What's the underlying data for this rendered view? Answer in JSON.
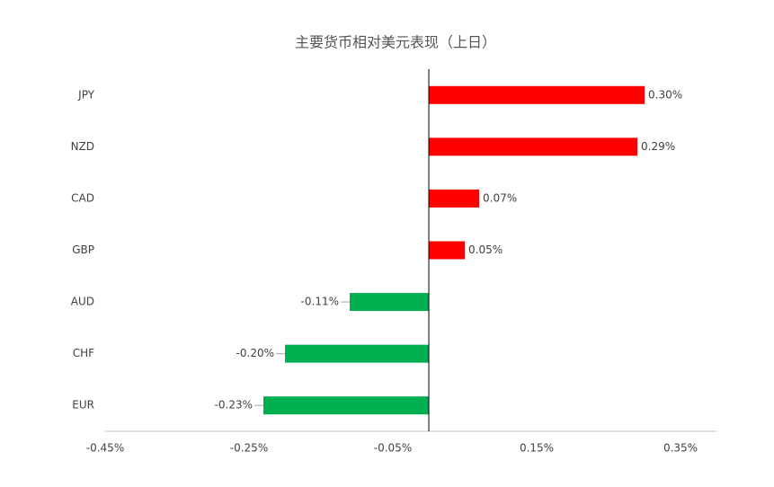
{
  "chart_data": {
    "type": "hbar",
    "title": "主要货币相对美元表现（上日）",
    "categories": [
      "JPY",
      "NZD",
      "CAD",
      "GBP",
      "AUD",
      "CHF",
      "EUR"
    ],
    "values": [
      0.3,
      0.29,
      0.07,
      0.05,
      -0.11,
      -0.2,
      -0.23
    ],
    "value_labels": [
      "0.30%",
      "0.29%",
      "0.07%",
      "0.05%",
      "-0.11%",
      "-0.20%",
      "-0.23%"
    ],
    "positive_color": "#ff0000",
    "negative_color": "#00b050",
    "xlim": [
      -0.45,
      0.4
    ],
    "xticks": [
      {
        "value": -0.45,
        "label": "-0.45%"
      },
      {
        "value": -0.25,
        "label": "-0.25%"
      },
      {
        "value": -0.05,
        "label": "-0.05%"
      },
      {
        "value": 0.15,
        "label": "0.15%"
      },
      {
        "value": 0.35,
        "label": "0.35%"
      }
    ]
  }
}
